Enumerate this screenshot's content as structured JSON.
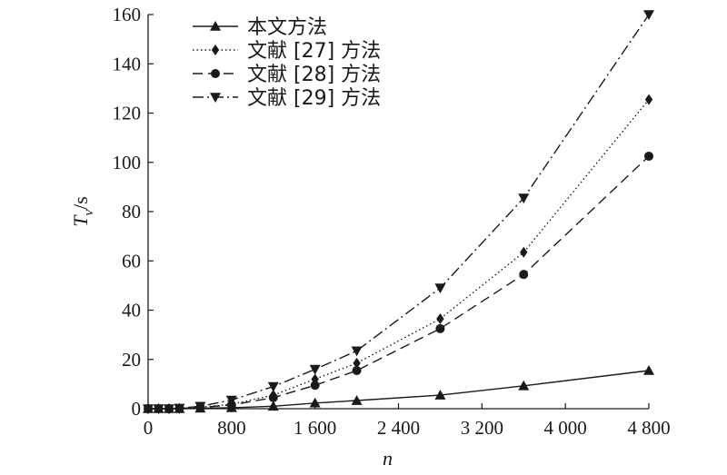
{
  "chart_data": {
    "type": "line",
    "xlabel": "n",
    "ylabel_main": "T",
    "ylabel_sub": "v",
    "ylabel_suffix": "/s",
    "xlim": [
      0,
      4800
    ],
    "ylim": [
      0,
      160
    ],
    "x_ticks": [
      {
        "value": 0,
        "label": "0"
      },
      {
        "value": 800,
        "label": "800"
      },
      {
        "value": 1600,
        "label": "1 600"
      },
      {
        "value": 2400,
        "label": "2 400"
      },
      {
        "value": 3200,
        "label": "3 200"
      },
      {
        "value": 4000,
        "label": "4 000"
      },
      {
        "value": 4800,
        "label": "4 800"
      }
    ],
    "y_ticks": [
      {
        "value": 0,
        "label": "0"
      },
      {
        "value": 20,
        "label": "20"
      },
      {
        "value": 40,
        "label": "40"
      },
      {
        "value": 60,
        "label": "60"
      },
      {
        "value": 80,
        "label": "80"
      },
      {
        "value": 100,
        "label": "100"
      },
      {
        "value": 120,
        "label": "120"
      },
      {
        "value": 140,
        "label": "140"
      },
      {
        "value": 160,
        "label": "160"
      }
    ],
    "grid": false,
    "legend_position": "top-left",
    "series": [
      {
        "name": "本文方法",
        "marker": "triangle-up",
        "dash": "solid",
        "color": "#1a1a1a",
        "x": [
          0,
          100,
          200,
          300,
          500,
          800,
          1200,
          1600,
          2000,
          2800,
          3600,
          4800
        ],
        "y": [
          0,
          0,
          0,
          0,
          0.2,
          0.4,
          1.0,
          2.3,
          3.3,
          5.5,
          9.3,
          15.5
        ]
      },
      {
        "name": "文献 [27] 方法",
        "marker": "diamond",
        "dash": "dotted",
        "color": "#1a1a1a",
        "x": [
          0,
          100,
          200,
          300,
          500,
          800,
          1200,
          1600,
          2000,
          2800,
          3600,
          4800
        ],
        "y": [
          0,
          0,
          0,
          0.1,
          0.6,
          1.8,
          5.5,
          12.0,
          18.5,
          36.5,
          63.5,
          125.5
        ]
      },
      {
        "name": "文献 [28] 方法",
        "marker": "circle",
        "dash": "dashed",
        "color": "#1a1a1a",
        "x": [
          0,
          100,
          200,
          300,
          500,
          800,
          1200,
          1600,
          2000,
          2800,
          3600,
          4800
        ],
        "y": [
          0,
          0,
          0,
          0.1,
          0.5,
          1.5,
          4.5,
          9.5,
          15.5,
          32.5,
          54.5,
          102.5
        ]
      },
      {
        "name": "文献 [29] 方法",
        "marker": "triangle-down",
        "dash": "dashdot",
        "color": "#1a1a1a",
        "x": [
          0,
          100,
          200,
          300,
          500,
          800,
          1200,
          1600,
          2000,
          2800,
          3600,
          4800
        ],
        "y": [
          0,
          0,
          0,
          0.2,
          1.0,
          3.5,
          9.0,
          16.0,
          23.5,
          49.0,
          85.5,
          160.0
        ]
      }
    ]
  }
}
